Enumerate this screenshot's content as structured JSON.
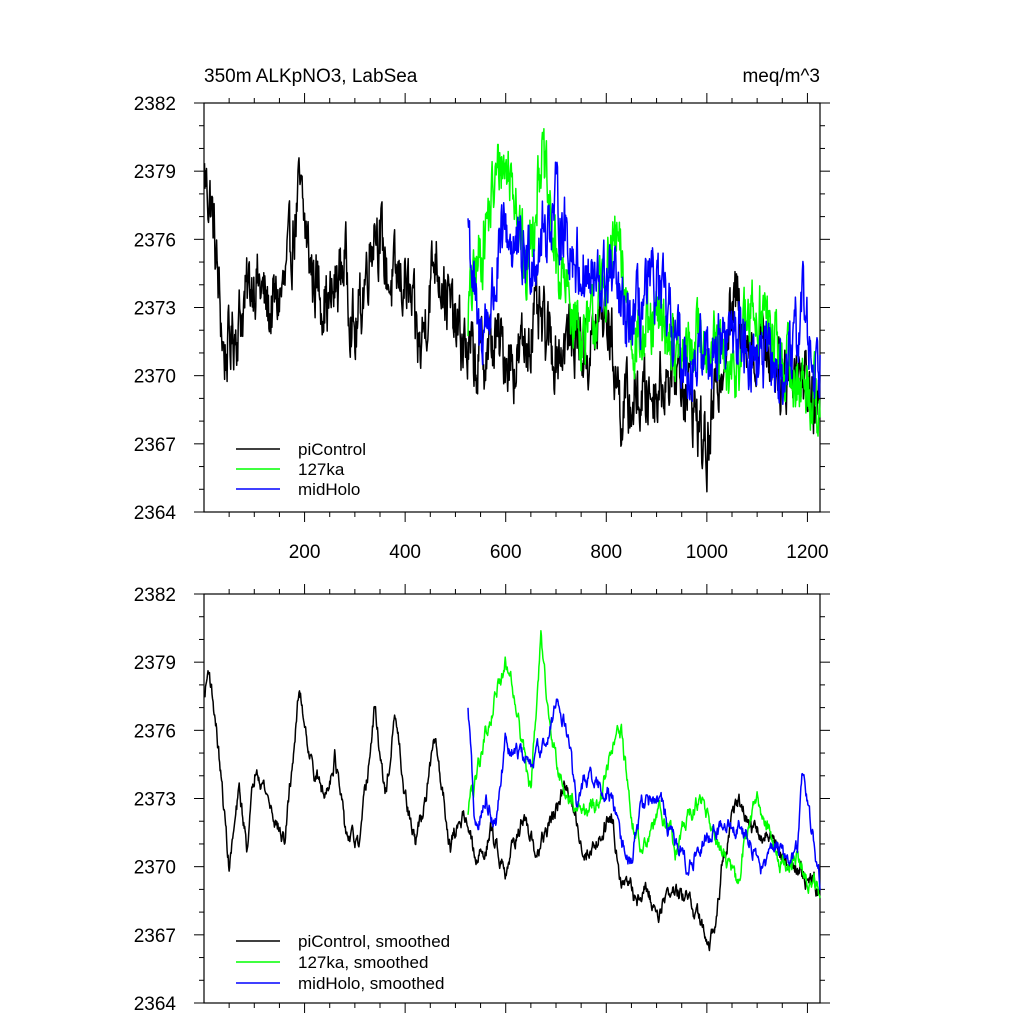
{
  "chart_data": [
    {
      "type": "line",
      "title": "350m ALKpNO3, LabSea",
      "units": "meq/m^3",
      "xlim": [
        0,
        1225
      ],
      "ylim": [
        2364,
        2382
      ],
      "xticks": [
        200,
        400,
        600,
        800,
        1000,
        1200
      ],
      "yticks": [
        2364,
        2367,
        2370,
        2373,
        2376,
        2379,
        2382
      ],
      "xtick_labels": [
        "200",
        "400",
        "600",
        "800",
        "1000",
        "1200"
      ],
      "ytick_labels": [
        "2364",
        "2367",
        "2370",
        "2373",
        "2376",
        "2379",
        "2382"
      ],
      "legend_position": "bottom-left",
      "series": [
        {
          "name": "piControl",
          "color": "#000000",
          "x_range": [
            1,
            1225
          ],
          "anchors": [
            [
              1,
              2378.8
            ],
            [
              15,
              2377.5
            ],
            [
              40,
              2370.8
            ],
            [
              70,
              2372.5
            ],
            [
              100,
              2374.5
            ],
            [
              130,
              2372.8
            ],
            [
              160,
              2373.8
            ],
            [
              190,
              2378.0
            ],
            [
              215,
              2374.5
            ],
            [
              250,
              2373.0
            ],
            [
              280,
              2375.2
            ],
            [
              300,
              2371.5
            ],
            [
              340,
              2377.0
            ],
            [
              370,
              2374.0
            ],
            [
              400,
              2374.2
            ],
            [
              430,
              2371.0
            ],
            [
              460,
              2375.5
            ],
            [
              500,
              2372.0
            ],
            [
              540,
              2370.5
            ],
            [
              580,
              2371.5
            ],
            [
              620,
              2370.5
            ],
            [
              660,
              2372.5
            ],
            [
              700,
              2371.0
            ],
            [
              740,
              2372.0
            ],
            [
              760,
              2370.8
            ],
            [
              800,
              2373.0
            ],
            [
              830,
              2368.5
            ],
            [
              870,
              2369.0
            ],
            [
              900,
              2369.5
            ],
            [
              940,
              2370.5
            ],
            [
              970,
              2369.0
            ],
            [
              1000,
              2366.5
            ],
            [
              1030,
              2371.0
            ],
            [
              1060,
              2373.5
            ],
            [
              1090,
              2371.0
            ],
            [
              1120,
              2371.5
            ],
            [
              1150,
              2370.0
            ],
            [
              1180,
              2370.5
            ],
            [
              1225,
              2368.5
            ]
          ]
        },
        {
          "name": "127ka",
          "color": "#00ff00",
          "x_range": [
            525,
            1225
          ],
          "anchors": [
            [
              525,
              2372.8
            ],
            [
              560,
              2376.5
            ],
            [
              590,
              2379.5
            ],
            [
              620,
              2378.5
            ],
            [
              640,
              2374.0
            ],
            [
              670,
              2380.0
            ],
            [
              700,
              2375.0
            ],
            [
              730,
              2373.0
            ],
            [
              760,
              2371.5
            ],
            [
              790,
              2373.5
            ],
            [
              820,
              2376.0
            ],
            [
              850,
              2372.0
            ],
            [
              880,
              2371.5
            ],
            [
              910,
              2372.5
            ],
            [
              950,
              2370.5
            ],
            [
              990,
              2372.0
            ],
            [
              1020,
              2371.0
            ],
            [
              1050,
              2369.5
            ],
            [
              1080,
              2372.5
            ],
            [
              1110,
              2373.0
            ],
            [
              1140,
              2371.0
            ],
            [
              1170,
              2370.0
            ],
            [
              1200,
              2369.5
            ],
            [
              1225,
              2369.0
            ]
          ]
        },
        {
          "name": "midHolo",
          "color": "#0000ff",
          "x_range": [
            525,
            1225
          ],
          "anchors": [
            [
              525,
              2377.0
            ],
            [
              545,
              2371.5
            ],
            [
              570,
              2373.0
            ],
            [
              600,
              2376.5
            ],
            [
              630,
              2375.0
            ],
            [
              660,
              2375.5
            ],
            [
              700,
              2377.5
            ],
            [
              740,
              2375.0
            ],
            [
              780,
              2373.8
            ],
            [
              810,
              2374.5
            ],
            [
              840,
              2372.0
            ],
            [
              870,
              2373.0
            ],
            [
              900,
              2374.0
            ],
            [
              930,
              2372.0
            ],
            [
              960,
              2370.5
            ],
            [
              1000,
              2371.0
            ],
            [
              1030,
              2371.5
            ],
            [
              1060,
              2372.0
            ],
            [
              1090,
              2371.0
            ],
            [
              1120,
              2370.5
            ],
            [
              1150,
              2370.0
            ],
            [
              1170,
              2370.5
            ],
            [
              1190,
              2373.5
            ],
            [
              1210,
              2370.5
            ],
            [
              1225,
              2370.8
            ]
          ]
        }
      ]
    },
    {
      "type": "line",
      "xlim": [
        0,
        1225
      ],
      "ylim": [
        2364,
        2382
      ],
      "xticks": [
        200,
        400,
        600,
        800,
        1000,
        1200
      ],
      "yticks": [
        2364,
        2367,
        2370,
        2373,
        2376,
        2379,
        2382
      ],
      "ytick_labels": [
        "2364",
        "2367",
        "2370",
        "2373",
        "2376",
        "2379",
        "2382"
      ],
      "legend_position": "bottom-left",
      "series": [
        {
          "name": "piControl, smoothed",
          "color": "#000000",
          "x_range": [
            1,
            1225
          ],
          "anchors": [
            [
              1,
              2377.5
            ],
            [
              10,
              2378.8
            ],
            [
              25,
              2376.0
            ],
            [
              50,
              2370.0
            ],
            [
              70,
              2373.2
            ],
            [
              85,
              2371.0
            ],
            [
              105,
              2374.8
            ],
            [
              130,
              2372.8
            ],
            [
              160,
              2371.0
            ],
            [
              190,
              2377.8
            ],
            [
              215,
              2374.5
            ],
            [
              240,
              2373.0
            ],
            [
              260,
              2375.0
            ],
            [
              280,
              2371.5
            ],
            [
              310,
              2370.8
            ],
            [
              340,
              2377.0
            ],
            [
              360,
              2373.0
            ],
            [
              380,
              2376.5
            ],
            [
              400,
              2373.0
            ],
            [
              420,
              2371.0
            ],
            [
              440,
              2373.0
            ],
            [
              460,
              2375.5
            ],
            [
              490,
              2371.0
            ],
            [
              520,
              2372.5
            ],
            [
              540,
              2370.0
            ],
            [
              570,
              2371.5
            ],
            [
              600,
              2370.0
            ],
            [
              630,
              2372.0
            ],
            [
              660,
              2370.5
            ],
            [
              690,
              2372.0
            ],
            [
              720,
              2373.5
            ],
            [
              760,
              2370.5
            ],
            [
              790,
              2371.5
            ],
            [
              810,
              2372.5
            ],
            [
              830,
              2369.5
            ],
            [
              860,
              2368.5
            ],
            [
              880,
              2369.0
            ],
            [
              900,
              2368.0
            ],
            [
              930,
              2369.0
            ],
            [
              960,
              2368.5
            ],
            [
              990,
              2367.5
            ],
            [
              1005,
              2366.0
            ],
            [
              1030,
              2370.0
            ],
            [
              1060,
              2373.0
            ],
            [
              1090,
              2371.5
            ],
            [
              1120,
              2371.5
            ],
            [
              1150,
              2370.5
            ],
            [
              1180,
              2370.0
            ],
            [
              1200,
              2369.5
            ],
            [
              1225,
              2369.0
            ]
          ]
        },
        {
          "name": "127ka, smoothed",
          "color": "#00ff00",
          "x_range": [
            525,
            1225
          ],
          "anchors": [
            [
              525,
              2372.5
            ],
            [
              540,
              2373.8
            ],
            [
              560,
              2376.0
            ],
            [
              580,
              2377.5
            ],
            [
              600,
              2379.0
            ],
            [
              620,
              2377.5
            ],
            [
              640,
              2374.5
            ],
            [
              650,
              2373.5
            ],
            [
              670,
              2380.0
            ],
            [
              690,
              2376.0
            ],
            [
              710,
              2374.0
            ],
            [
              730,
              2373.0
            ],
            [
              760,
              2372.5
            ],
            [
              790,
              2373.0
            ],
            [
              810,
              2375.0
            ],
            [
              830,
              2375.8
            ],
            [
              850,
              2372.0
            ],
            [
              870,
              2371.0
            ],
            [
              890,
              2371.5
            ],
            [
              910,
              2372.5
            ],
            [
              940,
              2370.5
            ],
            [
              960,
              2372.0
            ],
            [
              990,
              2373.0
            ],
            [
              1010,
              2371.5
            ],
            [
              1040,
              2370.0
            ],
            [
              1060,
              2369.0
            ],
            [
              1080,
              2371.5
            ],
            [
              1100,
              2373.0
            ],
            [
              1130,
              2371.0
            ],
            [
              1150,
              2370.0
            ],
            [
              1180,
              2370.5
            ],
            [
              1200,
              2369.5
            ],
            [
              1225,
              2368.8
            ]
          ]
        },
        {
          "name": "midHolo, smoothed",
          "color": "#0000ff",
          "x_range": [
            525,
            1225
          ],
          "anchors": [
            [
              525,
              2377.0
            ],
            [
              540,
              2371.5
            ],
            [
              560,
              2373.0
            ],
            [
              580,
              2372.0
            ],
            [
              600,
              2375.5
            ],
            [
              620,
              2375.0
            ],
            [
              650,
              2374.5
            ],
            [
              680,
              2375.5
            ],
            [
              700,
              2377.3
            ],
            [
              720,
              2376.0
            ],
            [
              740,
              2373.0
            ],
            [
              760,
              2374.0
            ],
            [
              790,
              2373.5
            ],
            [
              810,
              2373.0
            ],
            [
              830,
              2371.0
            ],
            [
              850,
              2370.5
            ],
            [
              870,
              2372.5
            ],
            [
              900,
              2373.0
            ],
            [
              930,
              2371.5
            ],
            [
              960,
              2370.0
            ],
            [
              990,
              2371.0
            ],
            [
              1020,
              2371.5
            ],
            [
              1050,
              2372.0
            ],
            [
              1080,
              2371.5
            ],
            [
              1110,
              2370.0
            ],
            [
              1140,
              2371.0
            ],
            [
              1160,
              2370.0
            ],
            [
              1180,
              2370.5
            ],
            [
              1190,
              2374.0
            ],
            [
              1205,
              2372.0
            ],
            [
              1225,
              2369.5
            ]
          ]
        }
      ]
    }
  ]
}
